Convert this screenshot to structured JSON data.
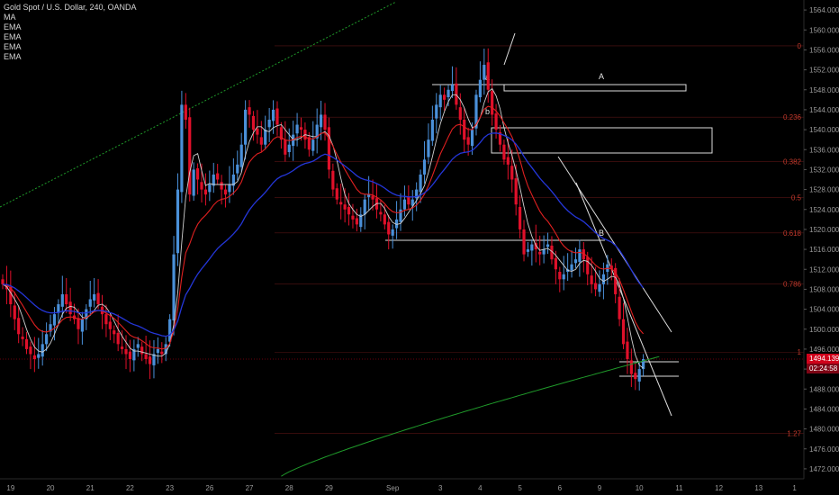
{
  "header": {
    "title": "Gold Spot / U.S. Dollar, 240, OANDA",
    "indicators": [
      "MA",
      "EMA",
      "EMA",
      "EMA",
      "EMA"
    ]
  },
  "colors": {
    "up": "#4a90d9",
    "down": "#e0102a",
    "ma": "#cfcfcf",
    "ema_fast": "#e02020",
    "ema_mid": "#2436d8",
    "ema_slow": "#1f9a2a",
    "channel": "#1f9a2a",
    "fib": "#7a1e1e",
    "price_tag": "#d0021b"
  },
  "price_tag": {
    "price": "1494.139",
    "countdown": "02:24:58"
  },
  "annotations": {
    "zone_a": "A",
    "zone_b": "B",
    "label_a": "a",
    "label_b": "b"
  },
  "chart_data": {
    "type": "candlestick",
    "title": "Gold Spot / U.S. Dollar, 240, OANDA",
    "ylim": [
      1470,
      1566
    ],
    "y_ticks": [
      1472,
      1476,
      1480,
      1484,
      1488,
      1492,
      1496,
      1500,
      1504,
      1508,
      1512,
      1516,
      1520,
      1524,
      1528,
      1532,
      1536,
      1540,
      1544,
      1548,
      1552,
      1556,
      1560,
      1564
    ],
    "x_ticks": [
      {
        "label": "19",
        "i": 2
      },
      {
        "label": "20",
        "i": 12
      },
      {
        "label": "21",
        "i": 22
      },
      {
        "label": "22",
        "i": 32
      },
      {
        "label": "23",
        "i": 42
      },
      {
        "label": "26",
        "i": 52
      },
      {
        "label": "27",
        "i": 62
      },
      {
        "label": "28",
        "i": 72
      },
      {
        "label": "29",
        "i": 82
      },
      {
        "label": "Sep",
        "i": 98
      },
      {
        "label": "3",
        "i": 110
      },
      {
        "label": "4",
        "i": 120
      },
      {
        "label": "5",
        "i": 130
      },
      {
        "label": "6",
        "i": 140
      },
      {
        "label": "9",
        "i": 150
      },
      {
        "label": "10",
        "i": 160
      },
      {
        "label": "11",
        "i": 170
      },
      {
        "label": "12",
        "i": 180
      },
      {
        "label": "13",
        "i": 190
      },
      {
        "label": "1",
        "i": 199
      }
    ],
    "fib_levels": [
      {
        "label": "0",
        "price": 1556.8
      },
      {
        "label": "0.236",
        "price": 1542.5
      },
      {
        "label": "0.382",
        "price": 1533.6
      },
      {
        "label": "0.5",
        "price": 1526.4
      },
      {
        "label": "0.618",
        "price": 1519.3
      },
      {
        "label": "0.786",
        "price": 1509.1
      },
      {
        "label": "1",
        "price": 1495.4
      },
      {
        "label": "1.27",
        "price": 1479.1
      }
    ],
    "closes": [
      1509,
      1508,
      1505,
      1502,
      1499,
      1498,
      1496,
      1495,
      1494,
      1495,
      1497,
      1499,
      1501,
      1503,
      1505,
      1507,
      1505,
      1503,
      1502,
      1500,
      1502,
      1504,
      1506,
      1507,
      1505,
      1503,
      1501,
      1500,
      1499,
      1497,
      1496,
      1495,
      1494,
      1496,
      1497,
      1495,
      1494,
      1493,
      1495,
      1496,
      1495,
      1497,
      1502,
      1515,
      1528,
      1545,
      1542,
      1527,
      1532,
      1530,
      1528,
      1527,
      1529,
      1531,
      1530,
      1528,
      1527,
      1529,
      1531,
      1533,
      1537,
      1544,
      1543,
      1540,
      1539,
      1537,
      1540,
      1542,
      1544,
      1541,
      1538,
      1535,
      1537,
      1539,
      1541,
      1540,
      1538,
      1536,
      1538,
      1541,
      1543,
      1540,
      1532,
      1528,
      1526,
      1525,
      1524,
      1523,
      1522,
      1521,
      1523,
      1526,
      1527,
      1526,
      1524,
      1523,
      1521,
      1519,
      1520,
      1522,
      1524,
      1526,
      1525,
      1526,
      1528,
      1531,
      1534,
      1538,
      1542,
      1545,
      1547,
      1546,
      1548,
      1549,
      1545,
      1542,
      1538,
      1537,
      1540,
      1547,
      1550,
      1553,
      1548,
      1543,
      1540,
      1537,
      1534,
      1533,
      1530,
      1525,
      1520,
      1515,
      1516,
      1517,
      1516,
      1515,
      1516,
      1517,
      1514,
      1512,
      1510,
      1511,
      1512,
      1513,
      1514,
      1516,
      1514,
      1511,
      1509,
      1508,
      1509,
      1511,
      1513,
      1512,
      1507,
      1502,
      1497,
      1494,
      1491,
      1490,
      1492,
      1494
    ]
  }
}
